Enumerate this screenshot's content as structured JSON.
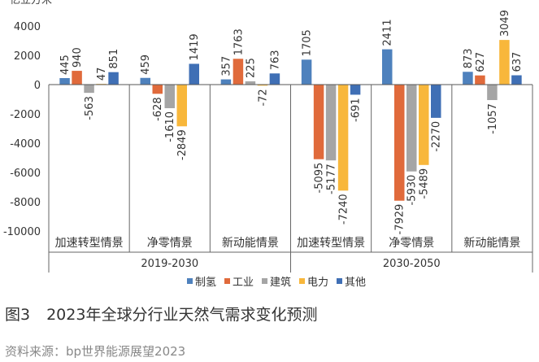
{
  "chart_data": {
    "type": "bar",
    "ylabel": "亿立方米",
    "ylim": [
      -10000,
      4000
    ],
    "yticks": [
      4000,
      2000,
      0,
      -2000,
      -4000,
      -6000,
      -8000,
      -10000
    ],
    "categories": [
      "加速转型情景",
      "净零情景",
      "新动能情景",
      "加速转型情景",
      "净零情景",
      "新动能情景"
    ],
    "groups": [
      "2019-2030",
      "2030-2050"
    ],
    "series": [
      {
        "name": "制氢",
        "color": "#4e81bd",
        "values": [
          445,
          459,
          357,
          1705,
          2411,
          873
        ]
      },
      {
        "name": "工业",
        "color": "#e06a3b",
        "values": [
          940,
          -628,
          1763,
          -5095,
          -7929,
          627
        ]
      },
      {
        "name": "建筑",
        "color": "#a5a5a5",
        "values": [
          -563,
          -1610,
          225,
          -5177,
          -5930,
          -1057
        ]
      },
      {
        "name": "电力",
        "color": "#f8b73b",
        "values": [
          47,
          -2849,
          -72,
          -7240,
          -5489,
          3049
        ]
      },
      {
        "name": "其他",
        "color": "#3f6fb5",
        "values": [
          851,
          1419,
          763,
          -691,
          -2270,
          637
        ]
      }
    ]
  },
  "caption": {
    "number": "图3",
    "title": "2023年全球分行业天然气需求变化预测"
  },
  "source": "资料来源：bp世界能源展望2023"
}
